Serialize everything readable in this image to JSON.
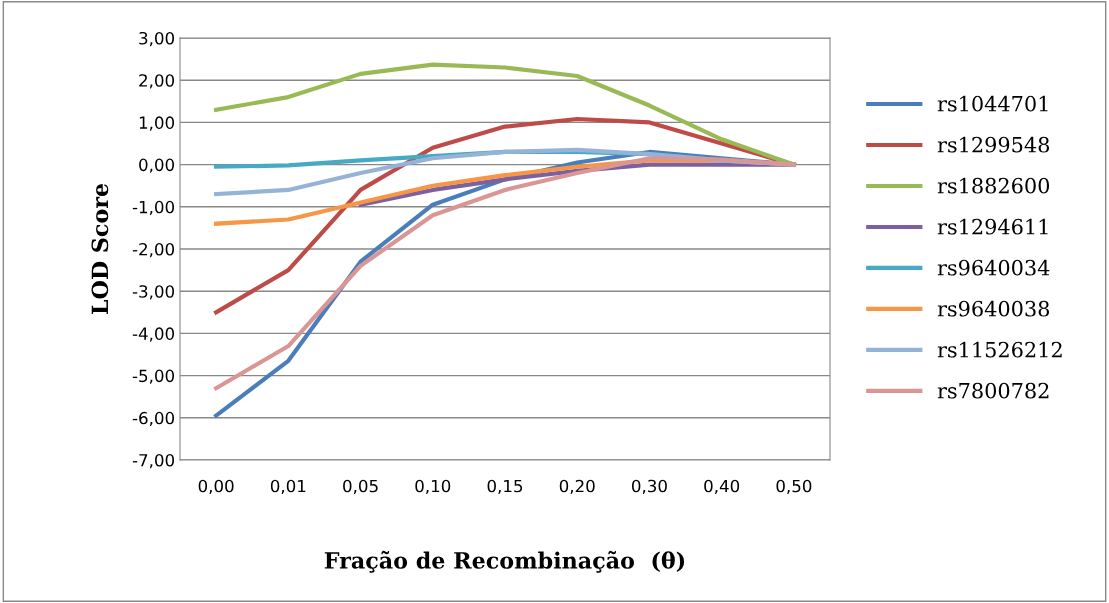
{
  "chart_data": {
    "type": "line",
    "xlabel": "Fração de Recombinação  (θ)",
    "ylabel": "LOD Score",
    "categories": [
      "0,00",
      "0,01",
      "0,05",
      "0,10",
      "0,15",
      "0,20",
      "0,30",
      "0,40",
      "0,50"
    ],
    "series": [
      {
        "name": "rs1044701",
        "color": "#4a7ebb",
        "values": [
          -5.95,
          -4.65,
          -2.3,
          -0.95,
          -0.35,
          0.05,
          0.3,
          0.15,
          0
        ]
      },
      {
        "name": "rs1299548",
        "color": "#be4b48",
        "values": [
          -3.5,
          -2.5,
          -0.6,
          0.4,
          0.9,
          1.08,
          1.0,
          0.5,
          0
        ]
      },
      {
        "name": "rs1882600",
        "color": "#98b954",
        "values": [
          1.3,
          1.6,
          2.15,
          2.37,
          2.3,
          2.1,
          1.4,
          0.6,
          0
        ]
      },
      {
        "name": "rs1294611",
        "color": "#7d60a0",
        "values": [
          null,
          null,
          -0.95,
          -0.6,
          -0.35,
          -0.15,
          0.0,
          0.0,
          0
        ]
      },
      {
        "name": "rs9640034",
        "color": "#46aac5",
        "values": [
          -0.05,
          -0.02,
          0.1,
          0.2,
          0.3,
          0.3,
          0.25,
          0.1,
          0
        ]
      },
      {
        "name": "rs9640038",
        "color": "#f79646",
        "values": [
          -1.4,
          -1.3,
          -0.9,
          -0.5,
          -0.25,
          -0.05,
          0.1,
          0.1,
          0
        ]
      },
      {
        "name": "rs11526212",
        "color": "#95b3d7",
        "values": [
          -0.7,
          -0.6,
          -0.2,
          0.15,
          0.3,
          0.35,
          0.25,
          0.1,
          0
        ]
      },
      {
        "name": "rs7800782",
        "color": "#d99694",
        "values": [
          -5.3,
          -4.3,
          -2.4,
          -1.2,
          -0.6,
          -0.2,
          0.15,
          0.12,
          0
        ]
      }
    ],
    "ylim": [
      -7,
      3
    ],
    "yticks": [
      {
        "value": -7,
        "label": "-7,00"
      },
      {
        "value": -6,
        "label": "-6,00"
      },
      {
        "value": -5,
        "label": "-5,00"
      },
      {
        "value": -4,
        "label": "-4,00"
      },
      {
        "value": -3,
        "label": "-3,00"
      },
      {
        "value": -2,
        "label": "-2,00"
      },
      {
        "value": -1,
        "label": "-1,00"
      },
      {
        "value": 0,
        "label": "0,00"
      },
      {
        "value": 1,
        "label": "1,00"
      },
      {
        "value": 2,
        "label": "2,00"
      },
      {
        "value": 3,
        "label": "3,00"
      }
    ],
    "grid": "y",
    "legend": "right",
    "marker": "none",
    "line_style": "solid"
  }
}
